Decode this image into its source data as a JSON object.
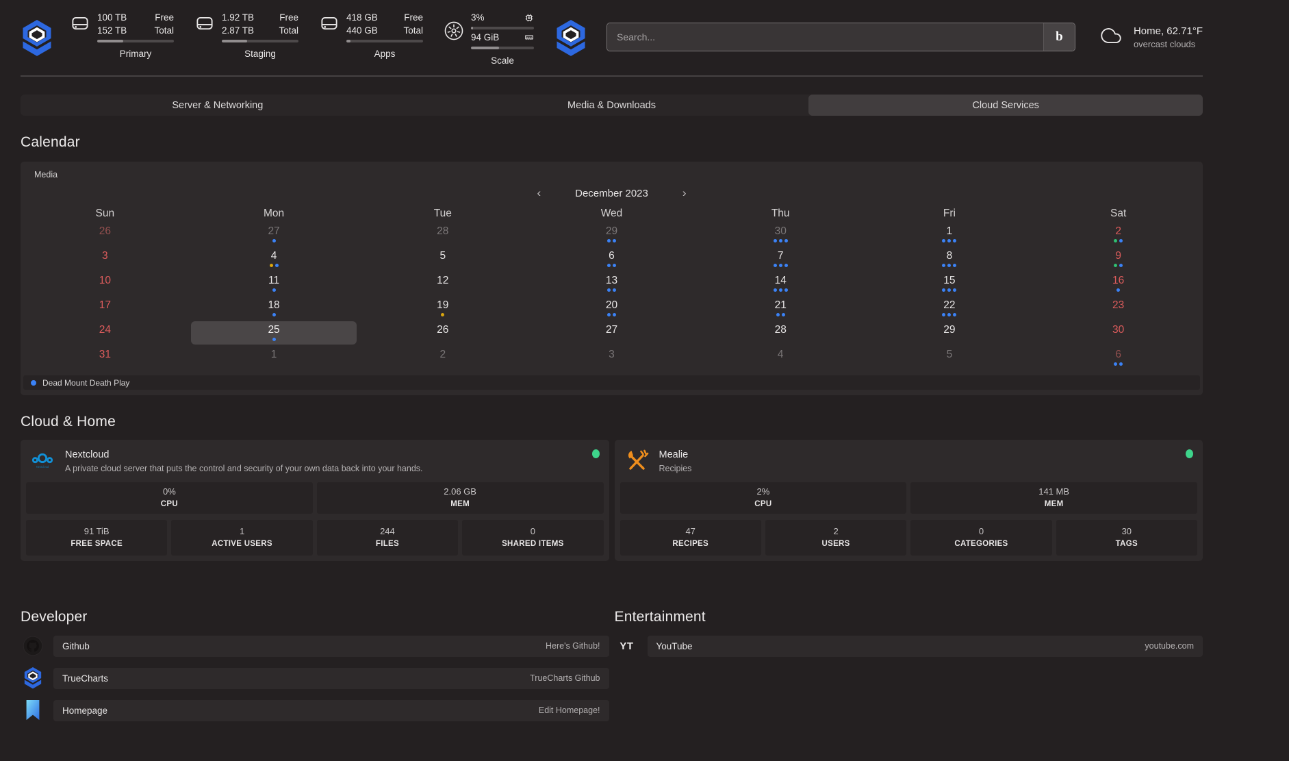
{
  "palette": {
    "blue": "#3b82f6",
    "yellow": "#d9a50f",
    "green": "#2fbf71",
    "status": "#3ed48b",
    "red": "#dd5c5c",
    "accent": "#2d68e0"
  },
  "header": {
    "widgets": [
      {
        "type": "disk",
        "label": "Primary",
        "rows": [
          [
            "100 TB",
            "Free"
          ],
          [
            "152 TB",
            "Total"
          ]
        ],
        "used_pct": 34
      },
      {
        "type": "disk",
        "label": "Staging",
        "rows": [
          [
            "1.92 TB",
            "Free"
          ],
          [
            "2.87 TB",
            "Total"
          ]
        ],
        "used_pct": 33
      },
      {
        "type": "disk",
        "label": "Apps",
        "rows": [
          [
            "418 GB",
            "Free"
          ],
          [
            "440 GB",
            "Total"
          ]
        ],
        "used_pct": 5
      },
      {
        "type": "scale",
        "label": "Scale",
        "cpu": {
          "value": "3%",
          "pct": 3
        },
        "mem": {
          "value": "94 GiB",
          "pct": 45
        }
      }
    ],
    "search": {
      "placeholder": "Search...",
      "button": "b"
    },
    "weather": {
      "title": "Home, 62.71°F",
      "subtitle": "overcast clouds"
    }
  },
  "tabs": [
    {
      "label": "Server & Networking",
      "active": false
    },
    {
      "label": "Media & Downloads",
      "active": false
    },
    {
      "label": "Cloud Services",
      "active": true
    }
  ],
  "calendar": {
    "title": "Calendar",
    "widget_label": "Media",
    "prev": "‹",
    "next": "›",
    "month": "December 2023",
    "day_headers": [
      "Sun",
      "Mon",
      "Tue",
      "Wed",
      "Thu",
      "Fri",
      "Sat"
    ],
    "weeks": [
      [
        {
          "d": "26",
          "state": "out-red",
          "dots": []
        },
        {
          "d": "27",
          "state": "out",
          "dots": [
            "blue"
          ]
        },
        {
          "d": "28",
          "state": "out",
          "dots": []
        },
        {
          "d": "29",
          "state": "out",
          "dots": [
            "blue",
            "blue"
          ]
        },
        {
          "d": "30",
          "state": "out",
          "dots": [
            "blue",
            "blue",
            "blue"
          ]
        },
        {
          "d": "1",
          "state": "in",
          "dots": [
            "blue",
            "blue",
            "blue"
          ]
        },
        {
          "d": "2",
          "state": "red",
          "dots": [
            "green",
            "blue"
          ]
        }
      ],
      [
        {
          "d": "3",
          "state": "red",
          "dots": []
        },
        {
          "d": "4",
          "state": "in",
          "dots": [
            "yellow",
            "blue"
          ]
        },
        {
          "d": "5",
          "state": "in",
          "dots": []
        },
        {
          "d": "6",
          "state": "in",
          "dots": [
            "blue",
            "blue"
          ]
        },
        {
          "d": "7",
          "state": "in",
          "dots": [
            "blue",
            "blue",
            "blue"
          ]
        },
        {
          "d": "8",
          "state": "in",
          "dots": [
            "blue",
            "blue",
            "blue"
          ]
        },
        {
          "d": "9",
          "state": "red",
          "dots": [
            "green",
            "blue"
          ]
        }
      ],
      [
        {
          "d": "10",
          "state": "red",
          "dots": []
        },
        {
          "d": "11",
          "state": "in",
          "dots": [
            "blue"
          ]
        },
        {
          "d": "12",
          "state": "in",
          "dots": []
        },
        {
          "d": "13",
          "state": "in",
          "dots": [
            "blue",
            "blue"
          ]
        },
        {
          "d": "14",
          "state": "in",
          "dots": [
            "blue",
            "blue",
            "blue"
          ]
        },
        {
          "d": "15",
          "state": "in",
          "dots": [
            "blue",
            "blue",
            "blue"
          ]
        },
        {
          "d": "16",
          "state": "red",
          "dots": [
            "blue"
          ]
        }
      ],
      [
        {
          "d": "17",
          "state": "red",
          "dots": []
        },
        {
          "d": "18",
          "state": "in",
          "dots": [
            "blue"
          ]
        },
        {
          "d": "19",
          "state": "in",
          "dots": [
            "yellow"
          ]
        },
        {
          "d": "20",
          "state": "in",
          "dots": [
            "blue",
            "blue"
          ]
        },
        {
          "d": "21",
          "state": "in",
          "dots": [
            "blue",
            "blue"
          ]
        },
        {
          "d": "22",
          "state": "in",
          "dots": [
            "blue",
            "blue",
            "blue"
          ]
        },
        {
          "d": "23",
          "state": "red",
          "dots": []
        }
      ],
      [
        {
          "d": "24",
          "state": "red",
          "dots": []
        },
        {
          "d": "25",
          "state": "sel",
          "dots": [
            "blue"
          ]
        },
        {
          "d": "26",
          "state": "in",
          "dots": []
        },
        {
          "d": "27",
          "state": "in",
          "dots": []
        },
        {
          "d": "28",
          "state": "in",
          "dots": []
        },
        {
          "d": "29",
          "state": "in",
          "dots": []
        },
        {
          "d": "30",
          "state": "red",
          "dots": []
        }
      ],
      [
        {
          "d": "31",
          "state": "red",
          "dots": []
        },
        {
          "d": "1",
          "state": "out",
          "dots": []
        },
        {
          "d": "2",
          "state": "out",
          "dots": []
        },
        {
          "d": "3",
          "state": "out",
          "dots": []
        },
        {
          "d": "4",
          "state": "out",
          "dots": []
        },
        {
          "d": "5",
          "state": "out",
          "dots": []
        },
        {
          "d": "6",
          "state": "out-red",
          "dots": [
            "blue",
            "blue"
          ]
        }
      ]
    ],
    "event": {
      "color": "blue",
      "label": "Dead Mount Death Play"
    }
  },
  "cloud_home": {
    "title": "Cloud & Home",
    "cards": [
      {
        "icon": "nextcloud",
        "name": "Nextcloud",
        "description": "A private cloud server that puts the control and security of your own data back into your hands.",
        "status": "online",
        "primary_stats": [
          {
            "value": "0%",
            "label": "CPU"
          },
          {
            "value": "2.06 GB",
            "label": "MEM"
          }
        ],
        "secondary_stats": [
          {
            "value": "91 TiB",
            "label": "FREE SPACE"
          },
          {
            "value": "1",
            "label": "ACTIVE USERS"
          },
          {
            "value": "244",
            "label": "FILES"
          },
          {
            "value": "0",
            "label": "SHARED ITEMS"
          }
        ]
      },
      {
        "icon": "mealie",
        "name": "Mealie",
        "description": "Recipies",
        "status": "online",
        "primary_stats": [
          {
            "value": "2%",
            "label": "CPU"
          },
          {
            "value": "141 MB",
            "label": "MEM"
          }
        ],
        "secondary_stats": [
          {
            "value": "47",
            "label": "RECIPES"
          },
          {
            "value": "2",
            "label": "USERS"
          },
          {
            "value": "0",
            "label": "CATEGORIES"
          },
          {
            "value": "30",
            "label": "TAGS"
          }
        ]
      }
    ]
  },
  "developer": {
    "title": "Developer",
    "links": [
      {
        "icon": "github",
        "name": "Github",
        "description": "Here's Github!"
      },
      {
        "icon": "truecharts",
        "name": "TrueCharts",
        "description": "TrueCharts Github"
      },
      {
        "icon": "homepage",
        "name": "Homepage",
        "description": "Edit Homepage!"
      }
    ]
  },
  "entertainment": {
    "title": "Entertainment",
    "links": [
      {
        "icon": "yt",
        "name": "YouTube",
        "description": "youtube.com"
      }
    ]
  }
}
